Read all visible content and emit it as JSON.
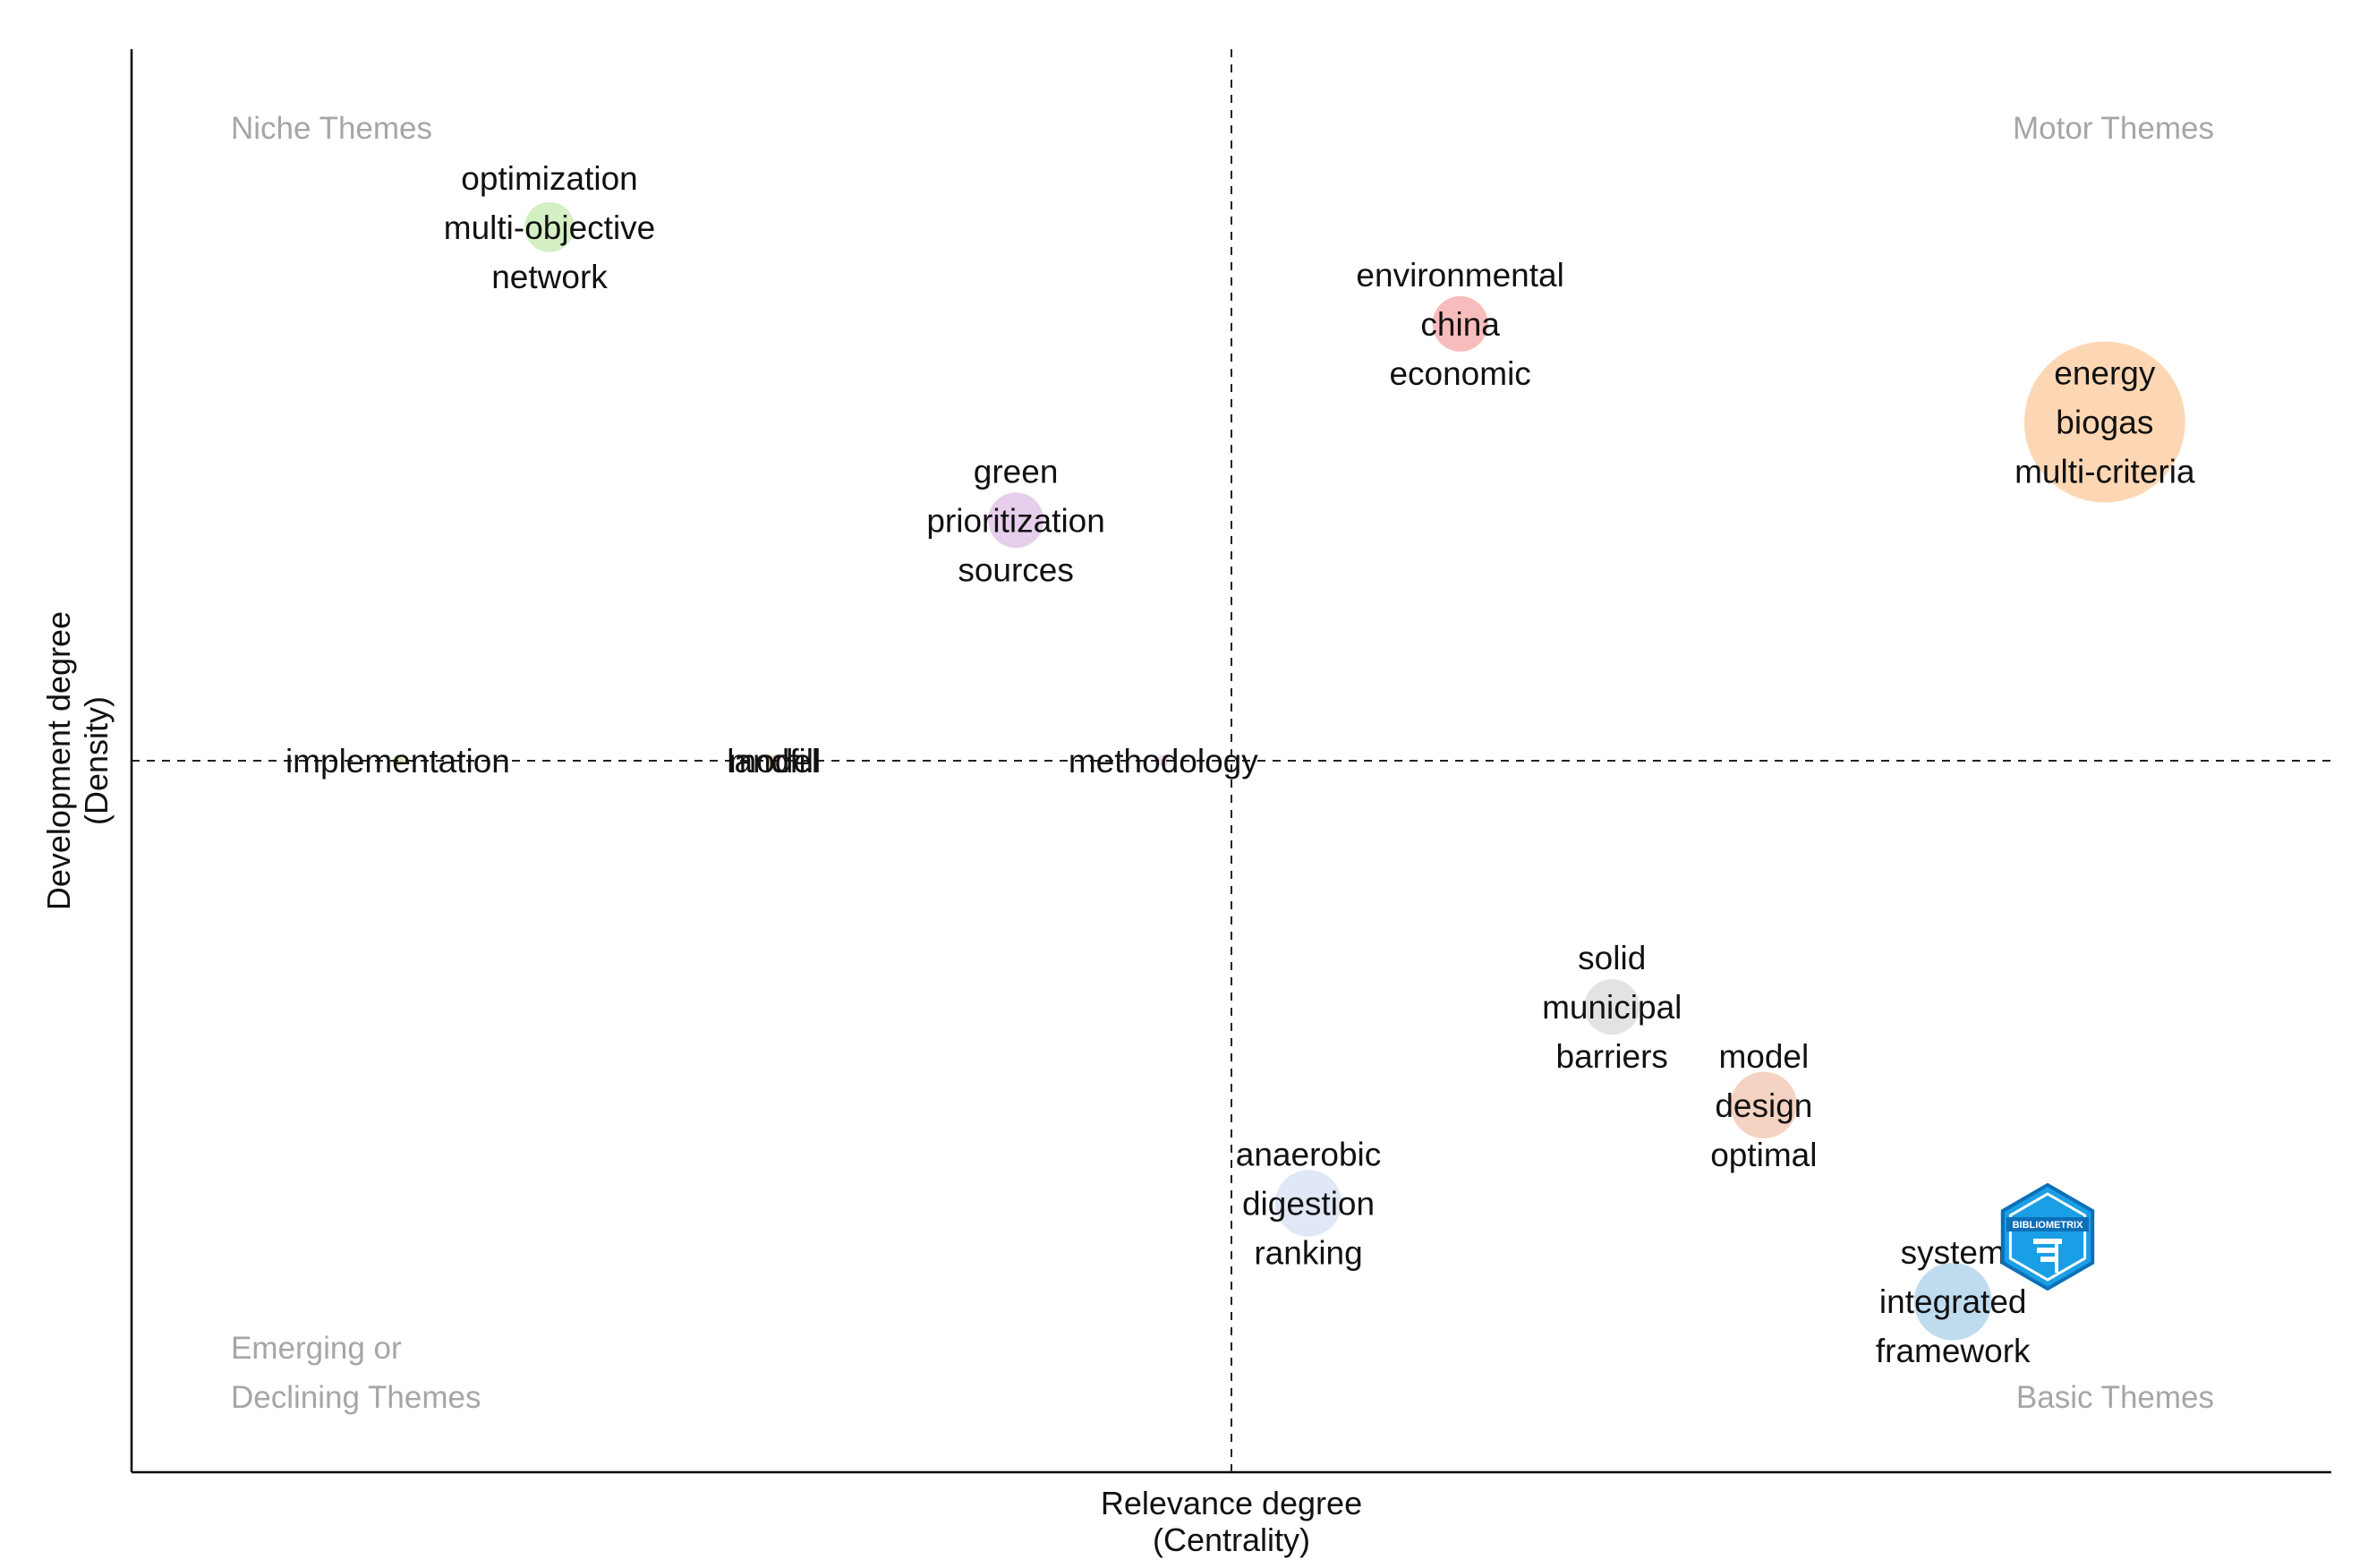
{
  "chart_data": {
    "type": "scatter",
    "subtype": "thematic-map",
    "xlabel": "Relevance degree",
    "xlabel_sub": "(Centrality)",
    "ylabel": "Development degree",
    "ylabel_sub": "(Density)",
    "xlim": [
      0,
      10
    ],
    "ylim": [
      0,
      10
    ],
    "x_divider": 5,
    "y_divider": 5,
    "quadrants": {
      "top_left": [
        "Niche Themes"
      ],
      "top_right": [
        "Motor Themes"
      ],
      "bottom_left": [
        "Emerging or",
        "Declining Themes"
      ],
      "bottom_right": [
        "Basic Themes"
      ]
    },
    "clusters": [
      {
        "name": "optimization",
        "x": 1.9,
        "y": 8.75,
        "size": 18,
        "color": "#c6e9b0",
        "words": [
          "optimization",
          "multi-objective",
          "network"
        ]
      },
      {
        "name": "china",
        "x": 6.04,
        "y": 8.07,
        "size": 20,
        "color": "#f7a6a6",
        "words": [
          "environmental",
          "china",
          "economic"
        ]
      },
      {
        "name": "energy",
        "x": 8.97,
        "y": 7.38,
        "size": 58,
        "color": "#fcc99b",
        "words": [
          "energy",
          "biogas",
          "multi-criteria"
        ]
      },
      {
        "name": "prioritization",
        "x": 4.02,
        "y": 6.69,
        "size": 20,
        "color": "#dfbde6",
        "words": [
          "green",
          "prioritization",
          "sources"
        ]
      },
      {
        "name": "implementation",
        "x": 1.21,
        "y": 5.0,
        "size": 4,
        "color": "#c6e9b0",
        "words": [
          "implementation"
        ]
      },
      {
        "name": "landfill",
        "x": 2.92,
        "y": 5.0,
        "size": 4,
        "color": "#fcc99b",
        "words": [
          "landfill",
          "model"
        ]
      },
      {
        "name": "methodology",
        "x": 4.69,
        "y": 5.0,
        "size": 4,
        "color": "#f3cbe6",
        "words": [
          "methodology"
        ]
      },
      {
        "name": "municipal",
        "x": 6.73,
        "y": 3.27,
        "size": 20,
        "color": "#d9d9d9",
        "words": [
          "solid",
          "municipal",
          "barriers"
        ]
      },
      {
        "name": "design",
        "x": 7.42,
        "y": 2.58,
        "size": 24,
        "color": "#f0c4ae",
        "words": [
          "model",
          "design",
          "optimal"
        ]
      },
      {
        "name": "digestion",
        "x": 5.35,
        "y": 1.89,
        "size": 24,
        "color": "#d6dff3",
        "words": [
          "anaerobic",
          "digestion",
          "ranking"
        ]
      },
      {
        "name": "integrated",
        "x": 8.28,
        "y": 1.2,
        "size": 28,
        "color": "#a9d0ea",
        "words": [
          "system",
          "integrated",
          "framework"
        ]
      }
    ],
    "logo": {
      "name": "bibliometrix-logo",
      "text": "BIBLIOMETRIX"
    }
  }
}
